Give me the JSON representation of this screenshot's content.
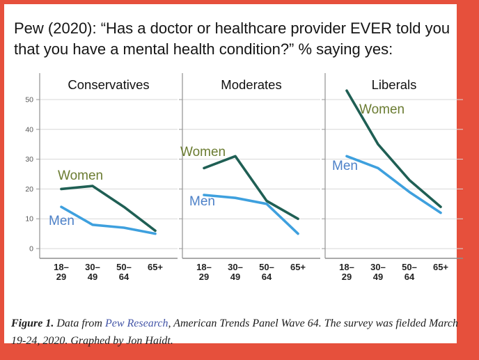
{
  "page": {
    "title": "Pew (2020): “Has a doctor or healthcare provider EVER told you that you have a mental health condition?” % saying yes:",
    "border_color": "#e6503c"
  },
  "caption": {
    "label": "Figure 1.",
    "pre_link": " Data from ",
    "link_text": "Pew Research",
    "post_link": ", American Trends Panel Wave 64. The survey was fielded March 19-24, 2020. Graphed by Jon Haidt.",
    "link_color": "#4456a8"
  },
  "chart_data": {
    "type": "line",
    "title": "% saying yes, by political ideology, gender and age",
    "categories": [
      [
        "18–",
        "29"
      ],
      [
        "30–",
        "49"
      ],
      [
        "50–",
        "64"
      ],
      [
        "65+"
      ]
    ],
    "y_ticks": [
      0,
      10,
      20,
      30,
      40,
      50
    ],
    "ylim": [
      0,
      55
    ],
    "grid": true,
    "legend_position": "inline-labels",
    "colors": {
      "women_line": "#1f5f54",
      "women_label": "#6b7c32",
      "men_line": "#3ea0de",
      "men_label": "#4d81c8",
      "grid": "#d7d7d7",
      "axis": "#999999"
    },
    "panels": [
      {
        "title": "Conservatives",
        "series": [
          {
            "name": "Women",
            "values": [
              20,
              21,
              14,
              6
            ]
          },
          {
            "name": "Men",
            "values": [
              14,
              8,
              7,
              5
            ]
          }
        ]
      },
      {
        "title": "Moderates",
        "series": [
          {
            "name": "Women",
            "values": [
              27,
              31,
              16,
              10
            ]
          },
          {
            "name": "Men",
            "values": [
              18,
              17,
              15,
              5
            ]
          }
        ]
      },
      {
        "title": "Liberals",
        "series": [
          {
            "name": "Women",
            "values": [
              53,
              35,
              23,
              14
            ]
          },
          {
            "name": "Men",
            "values": [
              31,
              27,
              19,
              12
            ]
          }
        ]
      }
    ]
  }
}
